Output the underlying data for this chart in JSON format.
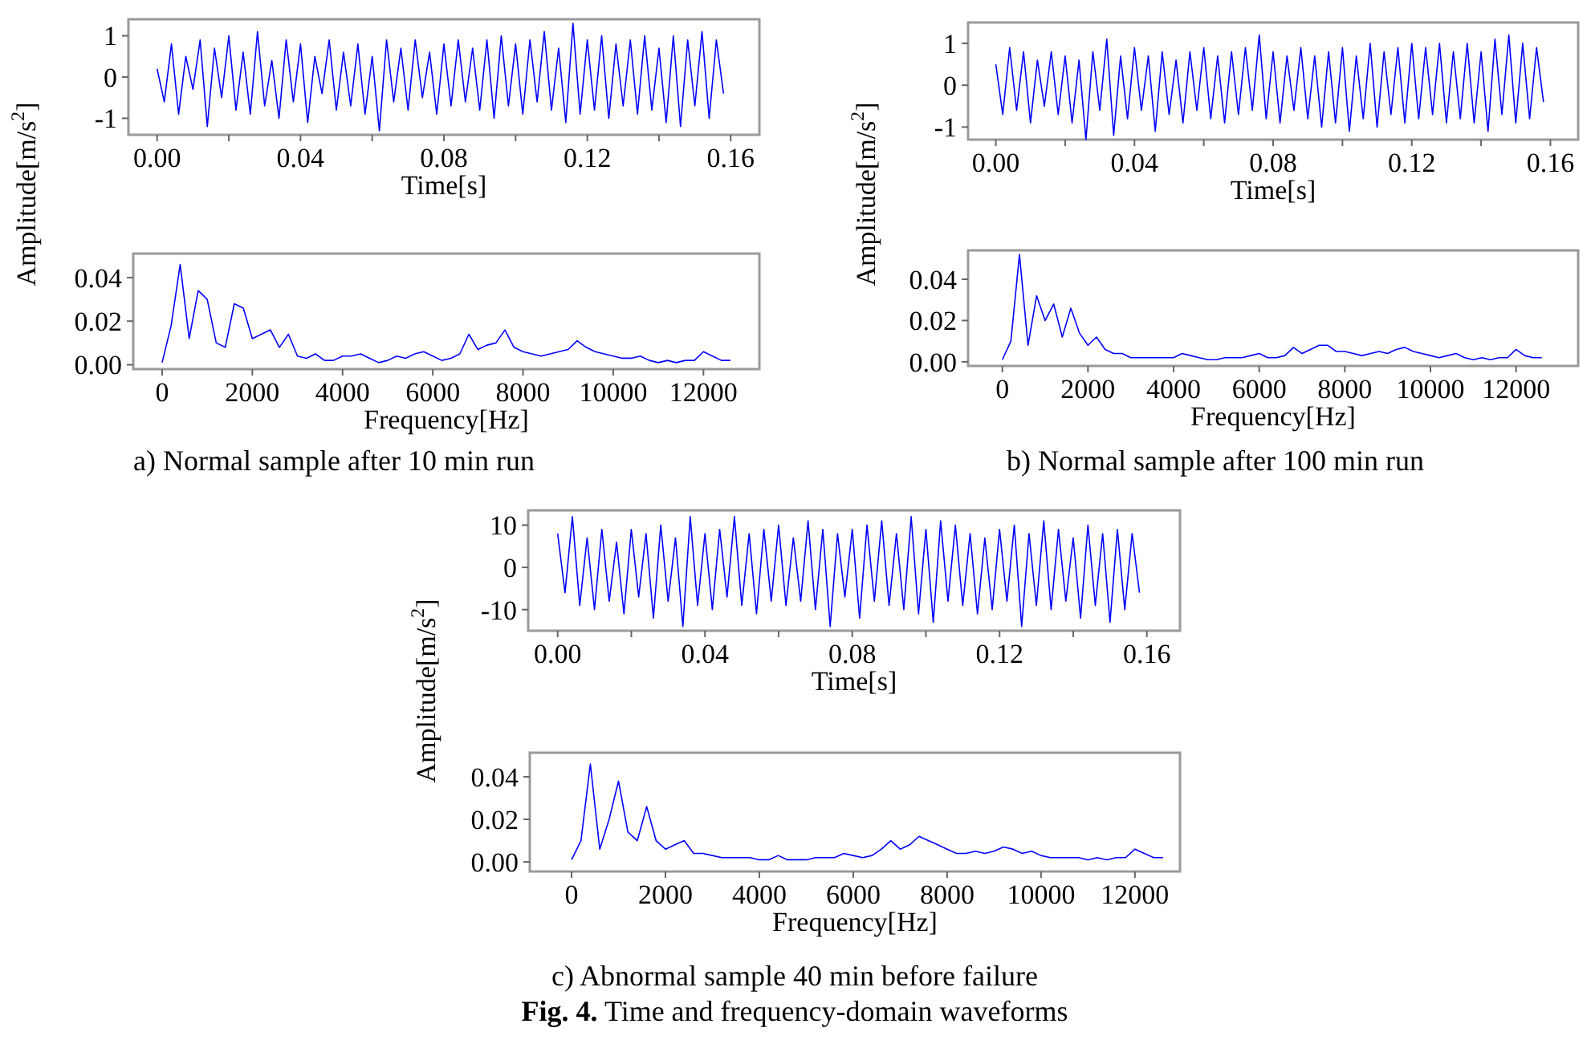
{
  "chart_data": [
    {
      "type": "line",
      "xlabel": "Time[s]",
      "ylabel": "Amplitude[m/s$^{2}$]",
      "xlim": [
        -0.008,
        0.168
      ],
      "ylim": [
        -1.4,
        1.4
      ],
      "xticks": [
        {
          "value": 0,
          "label": "0.00"
        },
        {
          "value": 0.02,
          "label": null
        },
        {
          "value": 0.04,
          "label": "0.04"
        },
        {
          "value": 0.06,
          "label": null
        },
        {
          "value": 0.08,
          "label": "0.08"
        },
        {
          "value": 0.1,
          "label": null
        },
        {
          "value": 0.12,
          "label": "0.12"
        },
        {
          "value": 0.14,
          "label": null
        },
        {
          "value": 0.16,
          "label": "0.16"
        }
      ],
      "yticks": [
        -1,
        0,
        1
      ],
      "x": [
        0,
        0.002,
        0.004,
        0.006,
        0.008,
        0.01,
        0.012,
        0.014,
        0.016,
        0.018,
        0.02,
        0.022,
        0.024,
        0.026,
        0.028,
        0.03,
        0.032,
        0.034,
        0.036,
        0.038,
        0.04,
        0.042,
        0.044,
        0.046,
        0.048,
        0.05,
        0.052,
        0.054,
        0.056,
        0.058,
        0.06,
        0.062,
        0.064,
        0.066,
        0.068,
        0.07,
        0.072,
        0.074,
        0.076,
        0.078,
        0.08,
        0.082,
        0.084,
        0.086,
        0.088,
        0.09,
        0.092,
        0.094,
        0.096,
        0.098,
        0.1,
        0.102,
        0.104,
        0.106,
        0.108,
        0.11,
        0.112,
        0.114,
        0.116,
        0.118,
        0.12,
        0.122,
        0.124,
        0.126,
        0.128,
        0.13,
        0.132,
        0.134,
        0.136,
        0.138,
        0.14,
        0.142,
        0.144,
        0.146,
        0.148,
        0.15,
        0.152,
        0.154,
        0.156,
        0.158
      ],
      "series": [
        {
          "color": "#0000ff",
          "values": [
            0.2,
            -0.6,
            0.8,
            -0.9,
            0.5,
            -0.3,
            0.9,
            -1.2,
            0.7,
            -0.5,
            1.0,
            -0.8,
            0.6,
            -0.9,
            1.1,
            -0.7,
            0.4,
            -1.0,
            0.9,
            -0.6,
            0.8,
            -1.1,
            0.5,
            -0.4,
            0.9,
            -0.8,
            0.6,
            -0.7,
            0.8,
            -0.9,
            0.5,
            -1.3,
            0.9,
            -0.6,
            0.7,
            -0.8,
            0.9,
            -0.5,
            0.6,
            -0.9,
            0.8,
            -0.7,
            0.9,
            -0.6,
            0.7,
            -0.8,
            0.9,
            -1.0,
            1.0,
            -0.7,
            0.8,
            -0.9,
            0.9,
            -0.6,
            1.1,
            -0.8,
            0.7,
            -1.1,
            1.3,
            -0.9,
            0.9,
            -0.8,
            1.0,
            -1.0,
            0.8,
            -0.7,
            0.9,
            -0.9,
            1.0,
            -0.8,
            0.7,
            -1.1,
            1.0,
            -1.2,
            0.9,
            -0.7,
            1.1,
            -1.0,
            0.9,
            -0.4
          ]
        }
      ]
    },
    {
      "type": "line",
      "xlabel": "Frequency[Hz]",
      "xlim": [
        -640,
        13240
      ],
      "ylim": [
        -0.002,
        0.051
      ],
      "xticks": [
        0,
        2000,
        4000,
        6000,
        8000,
        10000,
        12000
      ],
      "yticks": [
        {
          "value": 0,
          "label": "0.00"
        },
        {
          "value": 0.02,
          "label": "0.02"
        },
        {
          "value": 0.04,
          "label": "0.04"
        }
      ],
      "annotations": [
        "a) Normal sample after 10 min run"
      ],
      "x": [
        0,
        200,
        400,
        600,
        800,
        1000,
        1200,
        1400,
        1600,
        1800,
        2000,
        2200,
        2400,
        2600,
        2800,
        3000,
        3200,
        3400,
        3600,
        3800,
        4000,
        4200,
        4400,
        4600,
        4800,
        5000,
        5200,
        5400,
        5600,
        5800,
        6000,
        6200,
        6400,
        6600,
        6800,
        7000,
        7200,
        7400,
        7600,
        7800,
        8000,
        8200,
        8400,
        8600,
        8800,
        9000,
        9200,
        9400,
        9600,
        9800,
        10000,
        10200,
        10400,
        10600,
        10800,
        11000,
        11200,
        11400,
        11600,
        11800,
        12000,
        12200,
        12400,
        12600
      ],
      "series": [
        {
          "color": "#0000ff",
          "values": [
            0.001,
            0.018,
            0.046,
            0.012,
            0.034,
            0.03,
            0.01,
            0.008,
            0.028,
            0.026,
            0.012,
            0.014,
            0.016,
            0.008,
            0.014,
            0.004,
            0.003,
            0.005,
            0.002,
            0.002,
            0.004,
            0.004,
            0.005,
            0.003,
            0.001,
            0.002,
            0.004,
            0.003,
            0.005,
            0.006,
            0.004,
            0.002,
            0.003,
            0.005,
            0.014,
            0.007,
            0.009,
            0.01,
            0.016,
            0.008,
            0.006,
            0.005,
            0.004,
            0.005,
            0.006,
            0.007,
            0.011,
            0.008,
            0.006,
            0.005,
            0.004,
            0.003,
            0.003,
            0.004,
            0.002,
            0.001,
            0.002,
            0.001,
            0.002,
            0.002,
            0.006,
            0.004,
            0.002,
            0.002
          ]
        }
      ]
    },
    {
      "type": "line",
      "xlabel": "Time[s]",
      "ylabel": "Amplitude[m/s$^{2}$]",
      "xlim": [
        -0.008,
        0.168
      ],
      "ylim": [
        -1.3,
        1.5
      ],
      "xticks": [
        {
          "value": 0,
          "label": "0.00"
        },
        {
          "value": 0.02,
          "label": null
        },
        {
          "value": 0.04,
          "label": "0.04"
        },
        {
          "value": 0.06,
          "label": null
        },
        {
          "value": 0.08,
          "label": "0.08"
        },
        {
          "value": 0.1,
          "label": null
        },
        {
          "value": 0.12,
          "label": "0.12"
        },
        {
          "value": 0.14,
          "label": null
        },
        {
          "value": 0.16,
          "label": "0.16"
        }
      ],
      "yticks": [
        -1,
        0,
        1
      ],
      "x": [
        0,
        0.002,
        0.004,
        0.006,
        0.008,
        0.01,
        0.012,
        0.014,
        0.016,
        0.018,
        0.02,
        0.022,
        0.024,
        0.026,
        0.028,
        0.03,
        0.032,
        0.034,
        0.036,
        0.038,
        0.04,
        0.042,
        0.044,
        0.046,
        0.048,
        0.05,
        0.052,
        0.054,
        0.056,
        0.058,
        0.06,
        0.062,
        0.064,
        0.066,
        0.068,
        0.07,
        0.072,
        0.074,
        0.076,
        0.078,
        0.08,
        0.082,
        0.084,
        0.086,
        0.088,
        0.09,
        0.092,
        0.094,
        0.096,
        0.098,
        0.1,
        0.102,
        0.104,
        0.106,
        0.108,
        0.11,
        0.112,
        0.114,
        0.116,
        0.118,
        0.12,
        0.122,
        0.124,
        0.126,
        0.128,
        0.13,
        0.132,
        0.134,
        0.136,
        0.138,
        0.14,
        0.142,
        0.144,
        0.146,
        0.148,
        0.15,
        0.152,
        0.154,
        0.156,
        0.158
      ],
      "series": [
        {
          "color": "#0000ff",
          "values": [
            0.5,
            -0.7,
            0.9,
            -0.6,
            0.8,
            -0.9,
            0.6,
            -0.5,
            0.8,
            -0.7,
            0.7,
            -0.9,
            0.6,
            -1.3,
            0.8,
            -0.6,
            1.1,
            -1.2,
            0.7,
            -0.8,
            0.9,
            -0.6,
            0.7,
            -1.1,
            0.8,
            -0.7,
            0.6,
            -0.9,
            0.8,
            -0.6,
            0.9,
            -0.8,
            0.7,
            -0.9,
            0.8,
            -0.7,
            0.9,
            -0.6,
            1.2,
            -0.8,
            0.8,
            -0.9,
            0.7,
            -0.6,
            0.9,
            -0.8,
            0.7,
            -1.0,
            0.8,
            -0.9,
            0.9,
            -1.1,
            0.7,
            -0.8,
            1.0,
            -1.0,
            0.8,
            -0.7,
            0.9,
            -0.9,
            1.0,
            -0.8,
            0.9,
            -0.7,
            1.0,
            -0.9,
            0.8,
            -0.8,
            1.0,
            -0.9,
            0.8,
            -1.1,
            1.1,
            -0.7,
            1.2,
            -0.9,
            1.0,
            -0.8,
            0.9,
            -0.4
          ]
        }
      ]
    },
    {
      "type": "line",
      "xlabel": "Frequency[Hz]",
      "xlim": [
        -800,
        13450
      ],
      "ylim": [
        -0.002,
        0.054
      ],
      "xticks": [
        0,
        2000,
        4000,
        6000,
        8000,
        10000,
        12000
      ],
      "yticks": [
        {
          "value": 0,
          "label": "0.00"
        },
        {
          "value": 0.02,
          "label": "0.02"
        },
        {
          "value": 0.04,
          "label": "0.04"
        }
      ],
      "annotations": [
        "b) Normal sample after 100 min run"
      ],
      "x": [
        0,
        200,
        400,
        600,
        800,
        1000,
        1200,
        1400,
        1600,
        1800,
        2000,
        2200,
        2400,
        2600,
        2800,
        3000,
        3200,
        3400,
        3600,
        3800,
        4000,
        4200,
        4400,
        4600,
        4800,
        5000,
        5200,
        5400,
        5600,
        5800,
        6000,
        6200,
        6400,
        6600,
        6800,
        7000,
        7200,
        7400,
        7600,
        7800,
        8000,
        8200,
        8400,
        8600,
        8800,
        9000,
        9200,
        9400,
        9600,
        9800,
        10000,
        10200,
        10400,
        10600,
        10800,
        11000,
        11200,
        11400,
        11600,
        11800,
        12000,
        12200,
        12400,
        12600
      ],
      "series": [
        {
          "color": "#0000ff",
          "values": [
            0.001,
            0.01,
            0.052,
            0.008,
            0.032,
            0.02,
            0.028,
            0.012,
            0.026,
            0.014,
            0.008,
            0.012,
            0.006,
            0.004,
            0.004,
            0.002,
            0.002,
            0.002,
            0.002,
            0.002,
            0.002,
            0.004,
            0.003,
            0.002,
            0.001,
            0.001,
            0.002,
            0.002,
            0.002,
            0.003,
            0.004,
            0.002,
            0.002,
            0.003,
            0.007,
            0.004,
            0.006,
            0.008,
            0.008,
            0.005,
            0.005,
            0.004,
            0.003,
            0.004,
            0.005,
            0.004,
            0.006,
            0.007,
            0.005,
            0.004,
            0.003,
            0.002,
            0.003,
            0.004,
            0.002,
            0.001,
            0.002,
            0.001,
            0.002,
            0.002,
            0.006,
            0.003,
            0.002,
            0.002
          ]
        }
      ]
    },
    {
      "type": "line",
      "xlabel": "Time[s]",
      "ylabel": "Amplitude[m/s$^{2}$]",
      "xlim": [
        -0.008,
        0.169
      ],
      "ylim": [
        -15,
        13.5
      ],
      "xticks": [
        {
          "value": 0,
          "label": "0.00"
        },
        {
          "value": 0.02,
          "label": null
        },
        {
          "value": 0.04,
          "label": "0.04"
        },
        {
          "value": 0.06,
          "label": null
        },
        {
          "value": 0.08,
          "label": "0.08"
        },
        {
          "value": 0.1,
          "label": null
        },
        {
          "value": 0.12,
          "label": "0.12"
        },
        {
          "value": 0.14,
          "label": null
        },
        {
          "value": 0.16,
          "label": "0.16"
        }
      ],
      "yticks": [
        -10,
        0,
        10
      ],
      "x": [
        0,
        0.002,
        0.004,
        0.006,
        0.008,
        0.01,
        0.012,
        0.014,
        0.016,
        0.018,
        0.02,
        0.022,
        0.024,
        0.026,
        0.028,
        0.03,
        0.032,
        0.034,
        0.036,
        0.038,
        0.04,
        0.042,
        0.044,
        0.046,
        0.048,
        0.05,
        0.052,
        0.054,
        0.056,
        0.058,
        0.06,
        0.062,
        0.064,
        0.066,
        0.068,
        0.07,
        0.072,
        0.074,
        0.076,
        0.078,
        0.08,
        0.082,
        0.084,
        0.086,
        0.088,
        0.09,
        0.092,
        0.094,
        0.096,
        0.098,
        0.1,
        0.102,
        0.104,
        0.106,
        0.108,
        0.11,
        0.112,
        0.114,
        0.116,
        0.118,
        0.12,
        0.122,
        0.124,
        0.126,
        0.128,
        0.13,
        0.132,
        0.134,
        0.136,
        0.138,
        0.14,
        0.142,
        0.144,
        0.146,
        0.148,
        0.15,
        0.152,
        0.154,
        0.156,
        0.158
      ],
      "series": [
        {
          "color": "#0000ff",
          "values": [
            8,
            -6,
            12,
            -9,
            7,
            -10,
            9,
            -8,
            6,
            -11,
            9,
            -7,
            8,
            -12,
            10,
            -8,
            7,
            -14,
            12,
            -9,
            8,
            -10,
            9,
            -7,
            12,
            -9,
            8,
            -11,
            9,
            -8,
            10,
            -9,
            7,
            -8,
            11,
            -10,
            9,
            -14,
            8,
            -7,
            9,
            -12,
            10,
            -8,
            11,
            -9,
            8,
            -10,
            12,
            -11,
            9,
            -13,
            11,
            -8,
            10,
            -9,
            8,
            -11,
            7,
            -10,
            9,
            -8,
            10,
            -14,
            8,
            -9,
            11,
            -10,
            9,
            -8,
            7,
            -12,
            10,
            -9,
            8,
            -13,
            9,
            -10,
            8,
            -6
          ]
        }
      ]
    },
    {
      "type": "line",
      "xlabel": "Frequency[Hz]",
      "xlim": [
        -890,
        12960
      ],
      "ylim": [
        -0.0045,
        0.0513
      ],
      "xticks": [
        0,
        2000,
        4000,
        6000,
        8000,
        10000,
        12000
      ],
      "yticks": [
        {
          "value": 0,
          "label": "0.00"
        },
        {
          "value": 0.02,
          "label": "0.02"
        },
        {
          "value": 0.04,
          "label": "0.04"
        }
      ],
      "annotations": [
        "c) Abnormal sample 40 min before failure",
        "Fig. 4.",
        "Time and frequency-domain waveforms"
      ],
      "x": [
        0,
        200,
        400,
        600,
        800,
        1000,
        1200,
        1400,
        1600,
        1800,
        2000,
        2200,
        2400,
        2600,
        2800,
        3000,
        3200,
        3400,
        3600,
        3800,
        4000,
        4200,
        4400,
        4600,
        4800,
        5000,
        5200,
        5400,
        5600,
        5800,
        6000,
        6200,
        6400,
        6600,
        6800,
        7000,
        7200,
        7400,
        7600,
        7800,
        8000,
        8200,
        8400,
        8600,
        8800,
        9000,
        9200,
        9400,
        9600,
        9800,
        10000,
        10200,
        10400,
        10600,
        10800,
        11000,
        11200,
        11400,
        11600,
        11800,
        12000,
        12200,
        12400,
        12600
      ],
      "series": [
        {
          "color": "#0000ff",
          "values": [
            0.001,
            0.01,
            0.046,
            0.006,
            0.02,
            0.038,
            0.014,
            0.01,
            0.026,
            0.01,
            0.006,
            0.008,
            0.01,
            0.004,
            0.004,
            0.003,
            0.002,
            0.002,
            0.002,
            0.002,
            0.001,
            0.001,
            0.003,
            0.001,
            0.001,
            0.001,
            0.002,
            0.002,
            0.002,
            0.004,
            0.003,
            0.002,
            0.003,
            0.006,
            0.01,
            0.006,
            0.008,
            0.012,
            0.01,
            0.008,
            0.006,
            0.004,
            0.004,
            0.005,
            0.004,
            0.005,
            0.007,
            0.006,
            0.004,
            0.005,
            0.003,
            0.002,
            0.002,
            0.002,
            0.002,
            0.001,
            0.002,
            0.001,
            0.002,
            0.002,
            0.006,
            0.004,
            0.002,
            0.002
          ]
        }
      ]
    }
  ]
}
